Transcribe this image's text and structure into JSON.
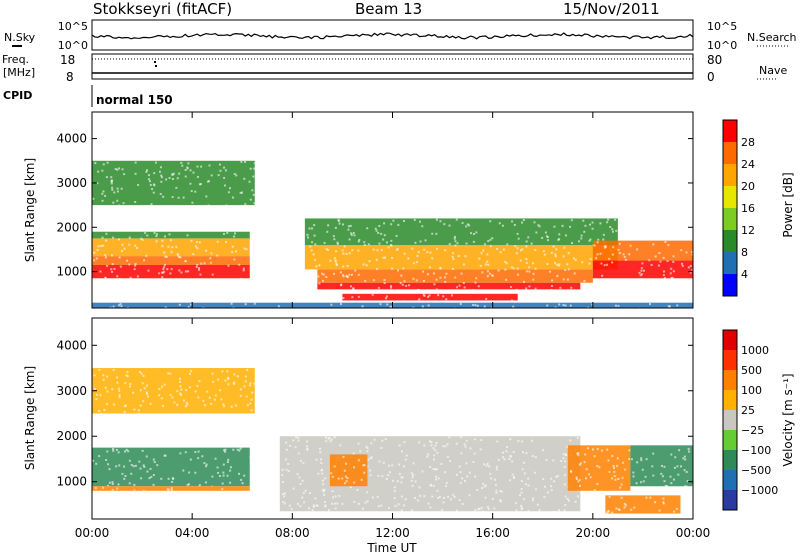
{
  "header": {
    "station": "Stokkseyri (fitACF)",
    "beam": "Beam 13",
    "date": "15/Nov/2011"
  },
  "strip_labels": {
    "nsky": "N.Sky",
    "nsearch": "N.Search",
    "freq_line1": "Freq.",
    "freq_line2": "[MHz]",
    "nave": "Nave",
    "cpid": "CPID",
    "cpid_value": "normal 150"
  },
  "strip_ticks": {
    "nsky_left": [
      "10^5",
      "10^0"
    ],
    "nsky_right": [
      "10^5",
      "10^0"
    ],
    "freq_left": [
      "18",
      "8"
    ],
    "nave_right": [
      "80",
      "0"
    ]
  },
  "colorbars": {
    "power": {
      "label": "Power [dB]",
      "ticks": [
        "28",
        "24",
        "20",
        "16",
        "12",
        "8",
        "4"
      ],
      "colors": [
        "#0000ff",
        "#1f6fb5",
        "#2a8a2a",
        "#7ccc22",
        "#e6e600",
        "#ffa500",
        "#ff6a00",
        "#ff0000"
      ]
    },
    "velocity": {
      "label": "Velocity [m s⁻¹]",
      "ticks": [
        "1000",
        "500",
        "100",
        "25",
        "−25",
        "−100",
        "−500",
        "−1000"
      ],
      "colors": [
        "#2a3aa0",
        "#1f6fb5",
        "#2e8b57",
        "#66cc33",
        "#c8c8c0",
        "#ffb000",
        "#ff8000",
        "#ff3000",
        "#e00000"
      ]
    }
  },
  "chart_data": [
    {
      "type": "heatmap",
      "name": "power",
      "ylabel": "Slant Range [km]",
      "xlabel": "Time UT",
      "x_ticks": [
        "00:00",
        "04:00",
        "08:00",
        "12:00",
        "16:00",
        "20:00",
        "00:00"
      ],
      "y_ticks": [
        "1000",
        "2000",
        "3000",
        "4000"
      ],
      "xlim_hours": [
        0,
        24
      ],
      "ylim_km": [
        180,
        4600
      ],
      "bands": [
        {
          "t0": 0.0,
          "t1": 6.3,
          "r0": 850,
          "r1": 1150,
          "color": "#ff0000"
        },
        {
          "t0": 0.0,
          "t1": 6.3,
          "r0": 1150,
          "r1": 1350,
          "color": "#ff6a00"
        },
        {
          "t0": 0.0,
          "t1": 6.3,
          "r0": 1350,
          "r1": 1750,
          "color": "#ffa500"
        },
        {
          "t0": 0.0,
          "t1": 6.3,
          "r0": 1750,
          "r1": 1900,
          "color": "#2a8a2a"
        },
        {
          "t0": 9.0,
          "t1": 19.5,
          "r0": 600,
          "r1": 750,
          "color": "#ff0000"
        },
        {
          "t0": 10.0,
          "t1": 17.0,
          "r0": 350,
          "r1": 500,
          "color": "#ff0000"
        },
        {
          "t0": 9.0,
          "t1": 20.0,
          "r0": 750,
          "r1": 1050,
          "color": "#ff6a00"
        },
        {
          "t0": 8.5,
          "t1": 21.0,
          "r0": 1050,
          "r1": 1600,
          "color": "#ffa500"
        },
        {
          "t0": 8.5,
          "t1": 21.0,
          "r0": 1600,
          "r1": 2200,
          "color": "#2a8a2a"
        },
        {
          "t0": 20.0,
          "t1": 24.0,
          "r0": 850,
          "r1": 1250,
          "color": "#ff0000"
        },
        {
          "t0": 20.0,
          "t1": 24.0,
          "r0": 1250,
          "r1": 1700,
          "color": "#ff6a00"
        },
        {
          "t0": 0.0,
          "t1": 6.5,
          "r0": 2500,
          "r1": 3500,
          "color": "#2a8a2a"
        },
        {
          "t0": 0.0,
          "t1": 24.0,
          "r0": 180,
          "r1": 300,
          "color": "#1f6fb5"
        }
      ]
    },
    {
      "type": "heatmap",
      "name": "velocity",
      "ylabel": "Slant Range [km]",
      "xlabel": "Time UT",
      "x_ticks": [
        "00:00",
        "04:00",
        "08:00",
        "12:00",
        "16:00",
        "20:00",
        "00:00"
      ],
      "y_ticks": [
        "1000",
        "2000",
        "3000",
        "4000"
      ],
      "xlim_hours": [
        0,
        24
      ],
      "ylim_km": [
        180,
        4600
      ],
      "bands": [
        {
          "t0": 0.0,
          "t1": 6.3,
          "r0": 900,
          "r1": 1750,
          "color": "#2e8b57"
        },
        {
          "t0": 0.0,
          "t1": 6.3,
          "r0": 800,
          "r1": 900,
          "color": "#ff8000"
        },
        {
          "t0": 7.5,
          "t1": 19.5,
          "r0": 350,
          "r1": 2000,
          "color": "#c8c8c0"
        },
        {
          "t0": 9.5,
          "t1": 11.0,
          "r0": 900,
          "r1": 1600,
          "color": "#ff8000"
        },
        {
          "t0": 19.0,
          "t1": 21.5,
          "r0": 800,
          "r1": 1800,
          "color": "#ff8000"
        },
        {
          "t0": 21.5,
          "t1": 24.0,
          "r0": 900,
          "r1": 1800,
          "color": "#2e8b57"
        },
        {
          "t0": 0.0,
          "t1": 6.5,
          "r0": 2500,
          "r1": 3500,
          "color": "#ffb000"
        },
        {
          "t0": 20.5,
          "t1": 23.5,
          "r0": 300,
          "r1": 700,
          "color": "#ff8000"
        }
      ]
    }
  ]
}
